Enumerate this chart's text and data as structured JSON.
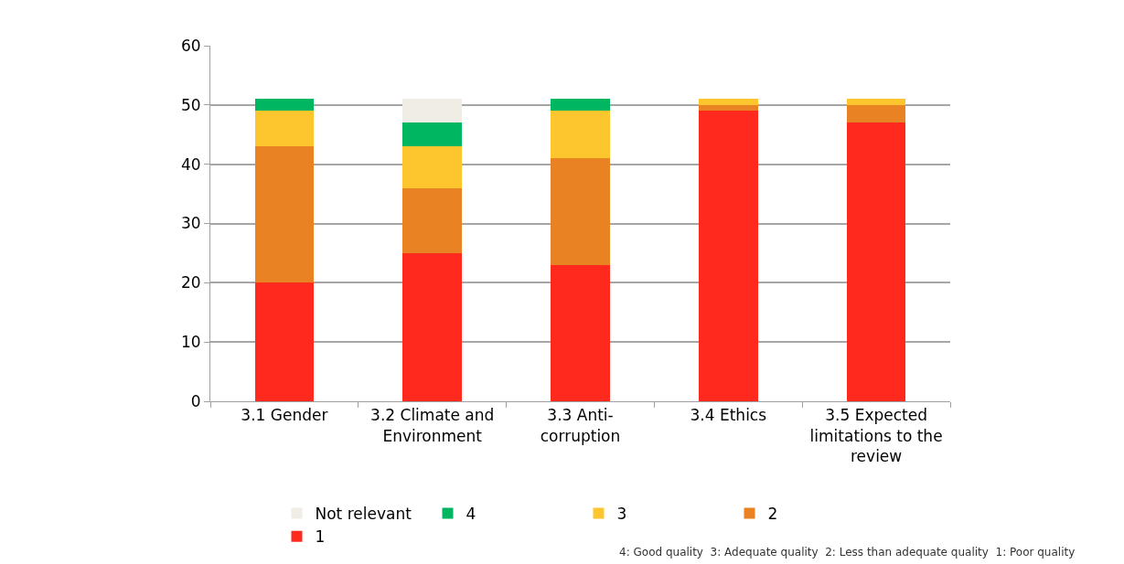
{
  "chart_data": {
    "type": "bar",
    "stacked": true,
    "categories": [
      "3.1 Gender",
      "3.2 Climate and Environment",
      "3.3 Anti-corruption",
      "3.4 Ethics",
      "3.5 Expected limitations to the review"
    ],
    "series": [
      {
        "name": "1",
        "color": "#ff2a1d",
        "values": [
          20,
          25,
          23,
          49,
          47
        ]
      },
      {
        "name": "2",
        "color": "#e88223",
        "values": [
          23,
          11,
          18,
          1,
          3
        ]
      },
      {
        "name": "3",
        "color": "#fdc62e",
        "values": [
          6,
          7,
          8,
          1,
          1
        ]
      },
      {
        "name": "4",
        "color": "#00b661",
        "values": [
          2,
          4,
          2,
          0,
          0
        ]
      },
      {
        "name": "Not relevant",
        "color": "#efede6",
        "values": [
          0,
          4,
          0,
          0,
          0
        ]
      }
    ],
    "ylim": [
      0,
      60
    ],
    "yticks": [
      0,
      10,
      20,
      30,
      40,
      50,
      60
    ],
    "grid": "y",
    "legend": "bottom",
    "annotations": [
      "4: Good quality  3: Adequate quality  2: Less than adequate quality  1: Poor quality"
    ]
  }
}
